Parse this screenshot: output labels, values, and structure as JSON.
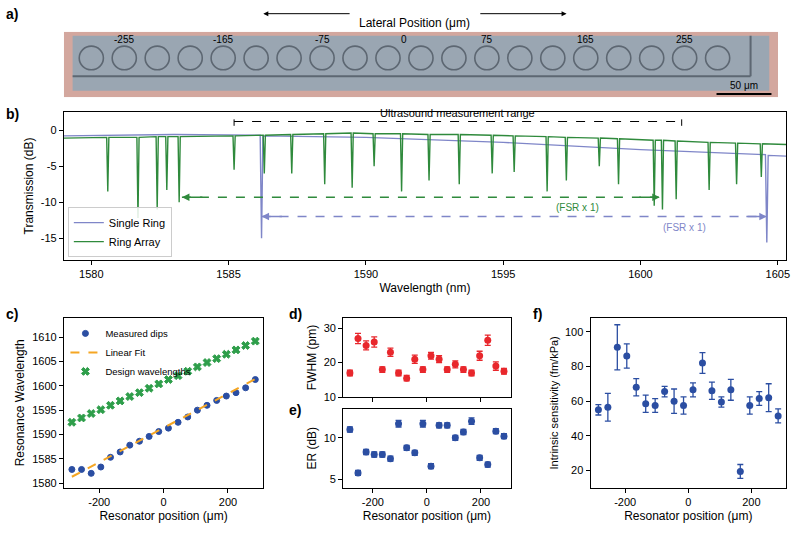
{
  "chart_data": [
    {
      "label": "a)",
      "type": "schematic",
      "title": "Lateral Position (μm)",
      "xlim": [
        -310,
        340
      ],
      "xticks": [
        -255,
        -165,
        -75,
        0,
        75,
        165,
        255
      ],
      "ring_positions": [
        -285,
        -255,
        -225,
        -195,
        -165,
        -135,
        -105,
        -75,
        -45,
        -15,
        15,
        45,
        75,
        105,
        135,
        165,
        195,
        225,
        255,
        285
      ],
      "scale_bar": {
        "length": 50,
        "label": "50 μm"
      }
    },
    {
      "label": "b)",
      "type": "line",
      "xlabel": "Wavelength (nm)",
      "ylabel": "Transmission (dB)",
      "xlim": [
        1579,
        1605.3
      ],
      "xticks": [
        1580,
        1585,
        1590,
        1595,
        1600,
        1605
      ],
      "ylim": [
        -18,
        2.5
      ],
      "yticks": [
        -15,
        -10,
        -5,
        0
      ],
      "legend": "lower left",
      "series": [
        {
          "name": "Single Ring",
          "color": "#7f86c8",
          "x": [
            1579,
            1583,
            1586.15,
            1586.2,
            1586.25,
            1590,
            1595,
            1600,
            1604.55,
            1604.6,
            1604.65,
            1605.3
          ],
          "values": [
            -0.8,
            -0.6,
            -0.7,
            -15.0,
            -0.8,
            -1.0,
            -1.7,
            -2.7,
            -3.4,
            -15.6,
            -3.5,
            -3.6
          ]
        },
        {
          "name": "Ring Array",
          "color": "#2f8a3c",
          "x": [
            1579,
            1580.56,
            1580.6,
            1580.64,
            1581.66,
            1581.7,
            1581.74,
            1582.36,
            1582.4,
            1582.44,
            1582.71,
            1582.75,
            1582.79,
            1583.16,
            1583.2,
            1583.24,
            1585.16,
            1585.2,
            1585.24,
            1586.26,
            1586.3,
            1586.34,
            1587.26,
            1587.3,
            1587.34,
            1588.46,
            1588.5,
            1588.54,
            1589.46,
            1589.5,
            1589.54,
            1590.26,
            1590.3,
            1590.34,
            1591.26,
            1591.3,
            1591.34,
            1592.26,
            1592.3,
            1592.34,
            1593.36,
            1593.4,
            1593.44,
            1594.56,
            1594.6,
            1594.64,
            1595.36,
            1595.4,
            1595.44,
            1596.56,
            1596.6,
            1596.64,
            1597.26,
            1597.3,
            1597.34,
            1598.46,
            1598.5,
            1598.54,
            1599.16,
            1599.2,
            1599.24,
            1600.46,
            1600.5,
            1600.54,
            1600.76,
            1600.8,
            1600.84,
            1601.26,
            1601.3,
            1601.34,
            1602.46,
            1602.5,
            1602.54,
            1603.46,
            1603.5,
            1603.54,
            1604.36,
            1604.4,
            1604.44,
            1605.3
          ],
          "values": [
            -1.1,
            -1.0,
            -8.5,
            -1.0,
            -1.0,
            -12.2,
            -1.0,
            -0.9,
            -11.0,
            -0.9,
            -0.9,
            -8.3,
            -0.9,
            -0.9,
            -10.0,
            -0.9,
            -0.8,
            -5.5,
            -0.8,
            -0.7,
            -6.0,
            -0.7,
            -0.6,
            -6.0,
            -0.6,
            -0.5,
            -7.5,
            -0.5,
            -0.4,
            -8.0,
            -0.4,
            -0.5,
            -5.0,
            -0.5,
            -0.5,
            -8.5,
            -0.5,
            -0.6,
            -7.0,
            -0.6,
            -0.6,
            -7.5,
            -0.6,
            -0.7,
            -6.0,
            -0.7,
            -0.8,
            -5.8,
            -0.8,
            -0.9,
            -8.5,
            -0.9,
            -1.0,
            -7.0,
            -1.0,
            -1.1,
            -5.0,
            -1.1,
            -1.2,
            -7.5,
            -1.2,
            -1.4,
            -10.5,
            -1.4,
            -1.4,
            -11.0,
            -1.4,
            -1.5,
            -9.6,
            -1.5,
            -1.7,
            -8.3,
            -1.7,
            -1.8,
            -7.5,
            -1.8,
            -1.9,
            -6.5,
            -1.9,
            -2.0
          ]
        }
      ],
      "range_marker": {
        "text": "Ultrasound measurement range",
        "x0": 1585.2,
        "x1": 1601.5,
        "y": 1.2,
        "line_style": "dashed"
      },
      "fsr_arrows": [
        {
          "text": "(FSR x 1)",
          "x0": 1583.3,
          "x1": 1600.7,
          "y": -9.3,
          "color": "#2f8a3c"
        },
        {
          "text": "(FSR x 1)",
          "x0": 1586.2,
          "x1": 1604.6,
          "y": -12.0,
          "color": "#7f86c8"
        }
      ]
    },
    {
      "label": "c)",
      "type": "scatter",
      "xlabel": "Resonator position (μm)",
      "ylabel": "Resonance Wavelength",
      "xlim": [
        -310,
        310
      ],
      "xticks": [
        -200,
        0,
        200
      ],
      "ylim": [
        1579,
        1614
      ],
      "yticks": [
        1580,
        1585,
        1590,
        1595,
        1600,
        1605,
        1610
      ],
      "legend": "upper left",
      "series": [
        {
          "name": "Measured dips",
          "color": "#2b4ea2",
          "marker": "circle",
          "x": [
            -285,
            -255,
            -225,
            -195,
            -165,
            -135,
            -105,
            -75,
            -45,
            -15,
            15,
            45,
            75,
            105,
            135,
            165,
            195,
            225,
            255,
            285
          ],
          "values": [
            1582.8,
            1582.8,
            1582.0,
            1583.3,
            1585.3,
            1586.4,
            1587.8,
            1588.6,
            1589.6,
            1590.6,
            1591.3,
            1592.5,
            1593.6,
            1595.0,
            1596.0,
            1597.0,
            1597.9,
            1598.6,
            1599.6,
            1601.3
          ]
        },
        {
          "name": "Linear Fit",
          "color": "#f5a623",
          "type": "line",
          "line_style": "dashed",
          "x": [
            -285,
            285
          ],
          "values": [
            1581.3,
            1601.4
          ]
        },
        {
          "name": "Design wavelengths",
          "color": "#2e9e4a",
          "marker": "x",
          "x": [
            -285,
            -255,
            -225,
            -195,
            -165,
            -135,
            -105,
            -75,
            -45,
            -15,
            15,
            45,
            75,
            105,
            135,
            165,
            195,
            225,
            255,
            285
          ],
          "values": [
            1592.5,
            1593.4,
            1594.3,
            1595.1,
            1596.0,
            1596.9,
            1597.8,
            1598.6,
            1599.5,
            1600.4,
            1601.3,
            1602.1,
            1603.0,
            1603.9,
            1604.8,
            1605.6,
            1606.5,
            1607.4,
            1608.3,
            1609.2
          ]
        }
      ]
    },
    {
      "label": "d)",
      "type": "scatter",
      "ylabel": "FWHM (pm)",
      "color": "#e8272c",
      "marker": "circle",
      "xlim": [
        -310,
        310
      ],
      "xticks": [
        -200,
        0,
        200
      ],
      "ylim": [
        10,
        33
      ],
      "yticks": [
        10,
        20,
        30
      ],
      "tick_labels": "y",
      "x": [
        -285,
        -255,
        -225,
        -195,
        -165,
        -135,
        -105,
        -75,
        -45,
        -15,
        15,
        45,
        75,
        105,
        135,
        165,
        195,
        225,
        255,
        285
      ],
      "values": [
        17,
        27,
        25,
        26,
        18,
        23,
        17,
        15.5,
        21,
        18,
        22,
        21,
        18,
        19.5,
        18,
        17,
        22,
        26.5,
        19,
        17.5
      ],
      "errors": [
        0.8,
        1.5,
        1.3,
        1.5,
        0.8,
        1.2,
        0.8,
        0.8,
        1.2,
        0.8,
        1.0,
        1.0,
        0.8,
        1.0,
        0.8,
        0.8,
        1.3,
        1.5,
        1.2,
        0.8
      ]
    },
    {
      "label": "e)",
      "type": "scatter",
      "xlabel": "Resonator position (μm)",
      "ylabel": "ER (dB)",
      "color": "#2b4ea2",
      "marker": "circle",
      "xlim": [
        -310,
        310
      ],
      "xticks": [
        -200,
        0,
        200
      ],
      "ylim": [
        4,
        13.5
      ],
      "yticks": [
        5,
        10
      ],
      "x": [
        -285,
        -255,
        -225,
        -195,
        -165,
        -135,
        -105,
        -75,
        -45,
        -15,
        15,
        45,
        75,
        105,
        135,
        165,
        195,
        225,
        255,
        285
      ],
      "values": [
        11,
        5.8,
        8.3,
        8,
        8,
        7.5,
        11.7,
        8.8,
        8.2,
        11.7,
        6.6,
        11.5,
        11.5,
        10,
        10.7,
        12,
        7.6,
        6.8,
        10.8,
        10.2
      ],
      "errors": [
        0.3,
        0.3,
        0.3,
        0.3,
        0.3,
        0.3,
        0.4,
        0.3,
        0.3,
        0.4,
        0.3,
        0.3,
        0.3,
        0.3,
        0.3,
        0.4,
        0.3,
        0.3,
        0.3,
        0.3
      ]
    },
    {
      "label": "f)",
      "type": "scatter",
      "xlabel": "Resonator position (μm)",
      "ylabel": "Intrinsic sensitivity (fm/kPa)",
      "color": "#2b4ea2",
      "marker": "circle",
      "xlim": [
        -310,
        310
      ],
      "xticks": [
        -200,
        0,
        200
      ],
      "ylim": [
        10,
        108
      ],
      "yticks": [
        20,
        40,
        60,
        80,
        100
      ],
      "x": [
        -285,
        -255,
        -225,
        -195,
        -165,
        -135,
        -105,
        -75,
        -45,
        -15,
        15,
        45,
        75,
        105,
        135,
        165,
        195,
        225,
        255,
        285
      ],
      "values": [
        55,
        56.5,
        91,
        86,
        68,
        58.5,
        57.5,
        65.5,
        60,
        57.5,
        66.5,
        82,
        66,
        59.5,
        66.5,
        19.5,
        57.5,
        61.5,
        62,
        51.5
      ],
      "errors": [
        3,
        8,
        13,
        7,
        5,
        5,
        4,
        3,
        7,
        5,
        4,
        6,
        5,
        3,
        6,
        4,
        5,
        4,
        8,
        4
      ]
    }
  ]
}
